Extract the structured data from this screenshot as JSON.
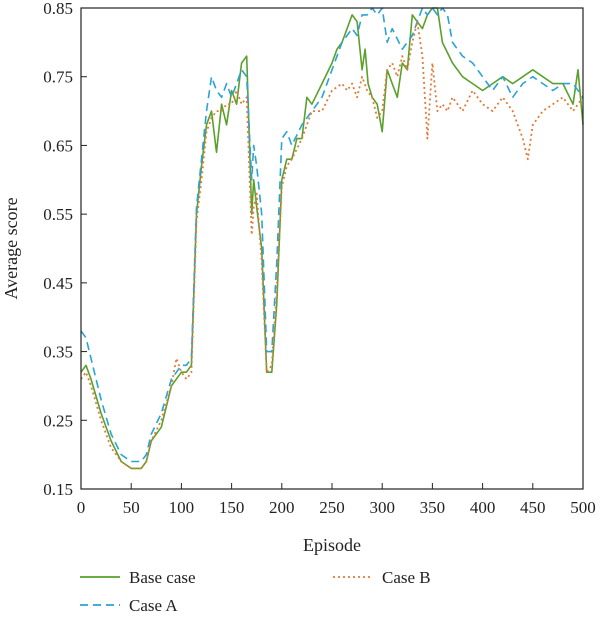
{
  "chart_data": {
    "type": "line",
    "title": "",
    "xlabel": "Episode",
    "ylabel": "Average score",
    "xlim": [
      0,
      500
    ],
    "ylim": [
      0.15,
      0.85
    ],
    "xticks": [
      "0",
      "50",
      "100",
      "150",
      "200",
      "250",
      "300",
      "350",
      "400",
      "450",
      "500"
    ],
    "yticks": [
      "0.15",
      "0.25",
      "0.35",
      "0.45",
      "0.55",
      "0.65",
      "0.75",
      "0.85"
    ],
    "grid": false,
    "legend_position": "bottom",
    "series": [
      {
        "name": "Base case",
        "color": "#5aa02c",
        "style": "solid",
        "x": [
          0,
          5,
          10,
          20,
          30,
          40,
          50,
          60,
          65,
          70,
          80,
          90,
          100,
          105,
          110,
          115,
          120,
          125,
          130,
          135,
          140,
          145,
          150,
          155,
          160,
          165,
          170,
          172,
          175,
          180,
          185,
          190,
          195,
          200,
          205,
          210,
          215,
          220,
          225,
          230,
          240,
          250,
          255,
          260,
          265,
          270,
          275,
          280,
          283,
          286,
          290,
          295,
          300,
          305,
          310,
          315,
          320,
          325,
          330,
          335,
          340,
          345,
          350,
          355,
          360,
          370,
          380,
          390,
          400,
          410,
          420,
          430,
          440,
          450,
          460,
          470,
          480,
          490,
          495,
          500
        ],
        "y": [
          0.32,
          0.33,
          0.31,
          0.26,
          0.22,
          0.19,
          0.18,
          0.18,
          0.19,
          0.22,
          0.24,
          0.3,
          0.32,
          0.32,
          0.33,
          0.55,
          0.62,
          0.68,
          0.7,
          0.64,
          0.71,
          0.68,
          0.73,
          0.71,
          0.77,
          0.78,
          0.55,
          0.6,
          0.56,
          0.5,
          0.32,
          0.32,
          0.42,
          0.6,
          0.63,
          0.63,
          0.66,
          0.66,
          0.72,
          0.71,
          0.74,
          0.77,
          0.79,
          0.8,
          0.82,
          0.84,
          0.83,
          0.76,
          0.79,
          0.74,
          0.72,
          0.71,
          0.67,
          0.76,
          0.74,
          0.72,
          0.77,
          0.76,
          0.84,
          0.83,
          0.82,
          0.84,
          0.85,
          0.85,
          0.8,
          0.77,
          0.75,
          0.74,
          0.73,
          0.74,
          0.75,
          0.74,
          0.75,
          0.76,
          0.75,
          0.74,
          0.74,
          0.71,
          0.76,
          0.68
        ]
      },
      {
        "name": "Case A",
        "color": "#2aa3d6",
        "style": "dashed",
        "x": [
          0,
          5,
          10,
          20,
          30,
          40,
          50,
          60,
          65,
          70,
          80,
          90,
          100,
          105,
          110,
          115,
          120,
          125,
          130,
          135,
          140,
          145,
          150,
          155,
          160,
          165,
          170,
          172,
          175,
          180,
          185,
          190,
          195,
          200,
          205,
          210,
          220,
          230,
          240,
          250,
          260,
          270,
          275,
          280,
          285,
          290,
          295,
          300,
          305,
          310,
          320,
          330,
          335,
          340,
          345,
          350,
          355,
          360,
          365,
          370,
          380,
          390,
          400,
          410,
          420,
          430,
          440,
          450,
          460,
          470,
          480,
          490,
          500
        ],
        "y": [
          0.38,
          0.37,
          0.34,
          0.28,
          0.23,
          0.2,
          0.19,
          0.19,
          0.2,
          0.23,
          0.26,
          0.31,
          0.33,
          0.33,
          0.34,
          0.56,
          0.63,
          0.7,
          0.75,
          0.73,
          0.72,
          0.74,
          0.72,
          0.74,
          0.76,
          0.75,
          0.6,
          0.65,
          0.62,
          0.55,
          0.35,
          0.35,
          0.48,
          0.66,
          0.67,
          0.65,
          0.68,
          0.7,
          0.72,
          0.76,
          0.8,
          0.82,
          0.81,
          0.84,
          0.84,
          0.85,
          0.84,
          0.85,
          0.8,
          0.82,
          0.79,
          0.81,
          0.83,
          0.85,
          0.84,
          0.85,
          0.84,
          0.85,
          0.84,
          0.8,
          0.78,
          0.77,
          0.75,
          0.73,
          0.75,
          0.72,
          0.74,
          0.75,
          0.74,
          0.73,
          0.74,
          0.74,
          0.72
        ]
      },
      {
        "name": "Case B",
        "color": "#e07b39",
        "style": "dotted",
        "x": [
          0,
          5,
          10,
          20,
          30,
          40,
          50,
          60,
          65,
          70,
          80,
          90,
          95,
          100,
          105,
          110,
          115,
          120,
          125,
          130,
          135,
          140,
          145,
          150,
          155,
          160,
          165,
          170,
          172,
          175,
          180,
          185,
          190,
          195,
          200,
          205,
          210,
          220,
          230,
          240,
          250,
          260,
          265,
          270,
          275,
          280,
          285,
          290,
          295,
          300,
          305,
          310,
          315,
          320,
          325,
          330,
          335,
          340,
          345,
          350,
          355,
          360,
          365,
          370,
          380,
          390,
          400,
          410,
          420,
          430,
          440,
          445,
          450,
          460,
          470,
          480,
          490,
          500
        ],
        "y": [
          0.31,
          0.32,
          0.3,
          0.25,
          0.21,
          0.19,
          0.18,
          0.18,
          0.19,
          0.22,
          0.25,
          0.3,
          0.34,
          0.32,
          0.31,
          0.32,
          0.54,
          0.6,
          0.67,
          0.69,
          0.7,
          0.7,
          0.71,
          0.71,
          0.73,
          0.71,
          0.72,
          0.52,
          0.56,
          0.58,
          0.48,
          0.32,
          0.33,
          0.44,
          0.59,
          0.62,
          0.63,
          0.66,
          0.7,
          0.7,
          0.73,
          0.74,
          0.73,
          0.74,
          0.72,
          0.75,
          0.73,
          0.72,
          0.69,
          0.7,
          0.76,
          0.77,
          0.75,
          0.78,
          0.76,
          0.8,
          0.83,
          0.78,
          0.66,
          0.77,
          0.7,
          0.71,
          0.7,
          0.72,
          0.7,
          0.73,
          0.71,
          0.7,
          0.72,
          0.7,
          0.66,
          0.63,
          0.68,
          0.7,
          0.71,
          0.72,
          0.7,
          0.72
        ]
      }
    ]
  }
}
